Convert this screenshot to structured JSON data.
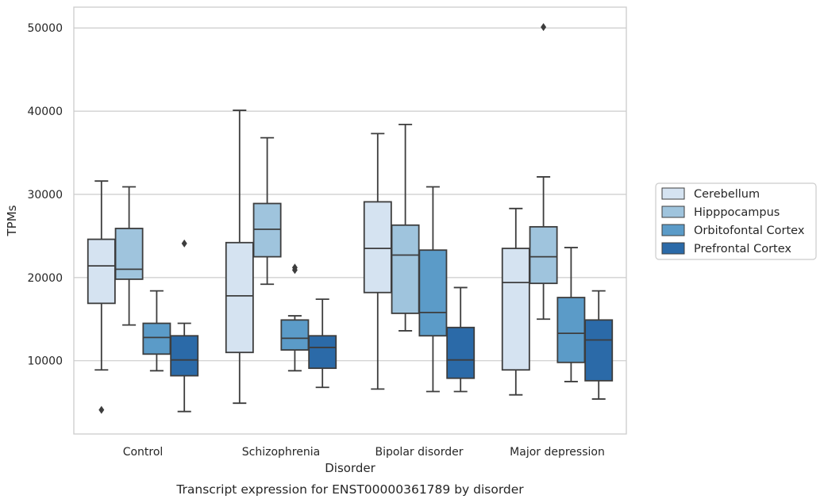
{
  "chart_data": {
    "type": "box",
    "xlabel": "Disorder",
    "ylabel": "TPMs",
    "caption": "Transcript expression for ENST00000361789 by disorder",
    "ylim": [
      1200,
      52500
    ],
    "yticks": [
      10000,
      20000,
      30000,
      40000,
      50000
    ],
    "grid": "horizontal",
    "legend_position": "right",
    "categories": [
      "Control",
      "Schizophrenia",
      "Bipolar disorder",
      "Major depression"
    ],
    "series": [
      {
        "name": "Cerebellum",
        "color": "#d5e3f1",
        "boxes": [
          {
            "whisker_low": 8900,
            "q1": 16900,
            "median": 21400,
            "q3": 24600,
            "whisker_high": 31600,
            "outliers": [
              4100
            ]
          },
          {
            "whisker_low": 4900,
            "q1": 11000,
            "median": 17800,
            "q3": 24200,
            "whisker_high": 40100,
            "outliers": []
          },
          {
            "whisker_low": 6600,
            "q1": 18200,
            "median": 23500,
            "q3": 29100,
            "whisker_high": 37300,
            "outliers": []
          },
          {
            "whisker_low": 5900,
            "q1": 8900,
            "median": 19400,
            "q3": 23500,
            "whisker_high": 28300,
            "outliers": []
          }
        ]
      },
      {
        "name": "Hipppocampus",
        "color": "#9fc4dd",
        "boxes": [
          {
            "whisker_low": 14300,
            "q1": 19800,
            "median": 21000,
            "q3": 25900,
            "whisker_high": 30900,
            "outliers": []
          },
          {
            "whisker_low": 19200,
            "q1": 22500,
            "median": 25800,
            "q3": 28900,
            "whisker_high": 36800,
            "outliers": []
          },
          {
            "whisker_low": 13600,
            "q1": 15700,
            "median": 22700,
            "q3": 26300,
            "whisker_high": 38400,
            "outliers": []
          },
          {
            "whisker_low": 15000,
            "q1": 19300,
            "median": 22500,
            "q3": 26100,
            "whisker_high": 32100,
            "outliers": [
              50100
            ]
          }
        ]
      },
      {
        "name": "Orbitofontal Cortex",
        "color": "#5b9bc8",
        "boxes": [
          {
            "whisker_low": 8800,
            "q1": 10800,
            "median": 12800,
            "q3": 14500,
            "whisker_high": 18400,
            "outliers": []
          },
          {
            "whisker_low": 8800,
            "q1": 11300,
            "median": 12700,
            "q3": 14900,
            "whisker_high": 15400,
            "outliers": [
              20900,
              21200
            ]
          },
          {
            "whisker_low": 6300,
            "q1": 13000,
            "median": 15800,
            "q3": 23300,
            "whisker_high": 30900,
            "outliers": []
          },
          {
            "whisker_low": 7500,
            "q1": 9800,
            "median": 13300,
            "q3": 17600,
            "whisker_high": 23600,
            "outliers": []
          }
        ]
      },
      {
        "name": "Prefrontal Cortex",
        "color": "#2b6aa8",
        "boxes": [
          {
            "whisker_low": 3900,
            "q1": 8200,
            "median": 10100,
            "q3": 13000,
            "whisker_high": 14500,
            "outliers": [
              24100
            ]
          },
          {
            "whisker_low": 6800,
            "q1": 9100,
            "median": 11600,
            "q3": 13000,
            "whisker_high": 17400,
            "outliers": []
          },
          {
            "whisker_low": 6300,
            "q1": 7900,
            "median": 10100,
            "q3": 14000,
            "whisker_high": 18800,
            "outliers": []
          },
          {
            "whisker_low": 5400,
            "q1": 7600,
            "median": 12500,
            "q3": 14900,
            "whisker_high": 18400,
            "outliers": []
          }
        ]
      }
    ]
  }
}
